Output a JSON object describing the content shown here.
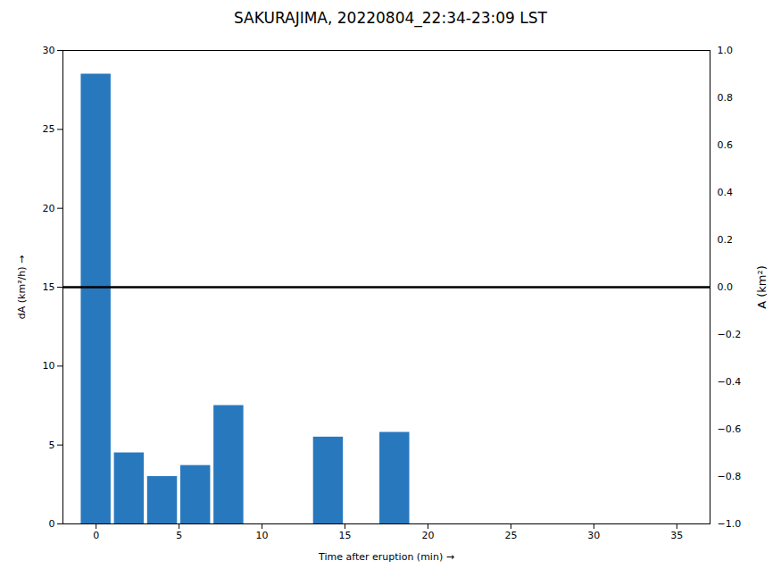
{
  "chart_data": {
    "type": "bar",
    "title": "SAKURAJIMA, 20220804_22:34-23:09 LST",
    "xlabel": "Time after eruption (min)",
    "ylabel": "dA (km²/h)",
    "y2label": "A (km²)",
    "x": [
      0,
      2,
      4,
      6,
      8,
      14,
      18
    ],
    "values": [
      28.5,
      4.5,
      3.0,
      3.7,
      7.5,
      5.5,
      5.8
    ],
    "color": "#2878be",
    "hline": 15.0,
    "xlim": [
      -2,
      37
    ],
    "xticks": [
      0,
      5,
      10,
      15,
      20,
      25,
      30,
      35
    ],
    "ylim": [
      0,
      30
    ],
    "yticks": [
      0,
      5,
      10,
      15,
      20,
      25,
      30
    ],
    "y2lim": [
      -1,
      1
    ],
    "y2ticks": [
      {
        "value": -1.0,
        "label": "−1.0"
      },
      -0.8,
      -0.6,
      -0.4,
      -0.2,
      {
        "value": 0.0,
        "label": "0.0"
      },
      0.2,
      0.4,
      0.6,
      0.8,
      {
        "value": 1.0,
        "label": "1.0"
      }
    ],
    "grid": false
  }
}
